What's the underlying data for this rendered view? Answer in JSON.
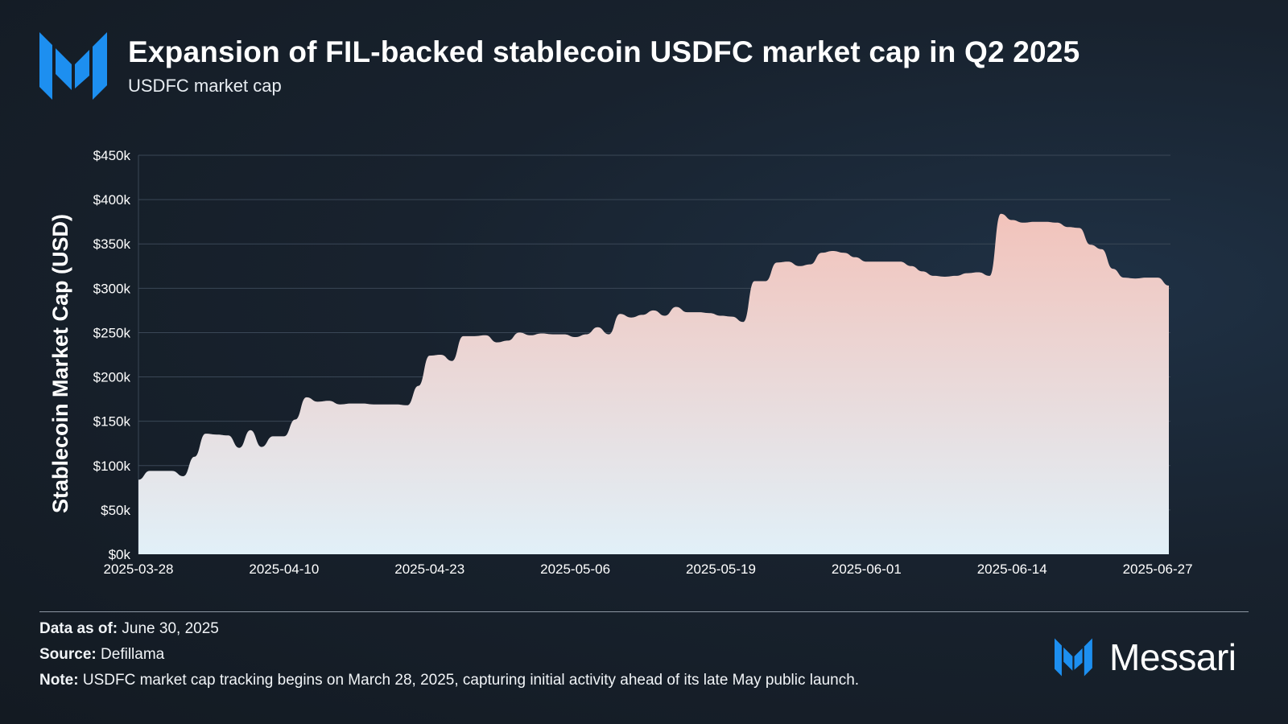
{
  "header": {
    "title": "Expansion of FIL-backed stablecoin USDFC market cap in Q2 2025",
    "subtitle": "USDFC market cap",
    "logo_icon": "messari-logo-icon"
  },
  "footer": {
    "data_as_of_label": "Data as of:",
    "data_as_of_value": "June 30, 2025",
    "source_label": "Source:",
    "source_value": "Defillama",
    "note_label": "Note:",
    "note_value": "USDFC market cap tracking begins on March 28, 2025, capturing initial activity ahead of its late May public launch.",
    "brand_name": "Messari",
    "brand_icon": "messari-logo-icon"
  },
  "colors": {
    "accent_blue": "#1d8ff0",
    "area_top": "#f2c3bb",
    "area_bottom": "#e1f0f8",
    "grid": "#3a4756",
    "background": "#18222e"
  },
  "chart_data": {
    "type": "area",
    "title": "Expansion of FIL-backed stablecoin USDFC market cap in Q2 2025",
    "subtitle": "USDFC market cap",
    "xlabel": "",
    "ylabel": "Stablecoin Market Cap (USD)",
    "ylim": [
      0,
      450000
    ],
    "yticks": [
      0,
      50000,
      100000,
      150000,
      200000,
      250000,
      300000,
      350000,
      400000,
      450000
    ],
    "ytick_labels": [
      "$0k",
      "$50k",
      "$100k",
      "$150k",
      "$200k",
      "$250k",
      "$300k",
      "$350k",
      "$400k",
      "$450k"
    ],
    "grid": true,
    "legend": "none",
    "x_tick_labels": [
      "2025-03-28",
      "2025-04-10",
      "2025-04-23",
      "2025-05-06",
      "2025-05-19",
      "2025-06-01",
      "2025-06-14",
      "2025-06-27"
    ],
    "x_tick_days": [
      0,
      13,
      26,
      39,
      52,
      65,
      78,
      91
    ],
    "x_start": "2025-03-28",
    "series": [
      {
        "name": "USDFC market cap",
        "x_days": [
          0,
          1,
          2,
          3,
          4,
          5,
          6,
          7,
          8,
          9,
          10,
          11,
          12,
          13,
          14,
          15,
          16,
          17,
          18,
          19,
          20,
          21,
          22,
          23,
          24,
          25,
          26,
          27,
          28,
          29,
          30,
          31,
          32,
          33,
          34,
          35,
          36,
          37,
          38,
          39,
          40,
          41,
          42,
          43,
          44,
          45,
          46,
          47,
          48,
          49,
          50,
          51,
          52,
          53,
          54,
          55,
          56,
          57,
          58,
          59,
          60,
          61,
          62,
          63,
          64,
          65,
          66,
          67,
          68,
          69,
          70,
          71,
          72,
          73,
          74,
          75,
          76,
          77,
          78,
          79,
          80,
          81,
          82,
          83,
          84,
          85,
          86,
          87,
          88,
          89,
          90,
          91,
          92
        ],
        "values": [
          84000,
          94000,
          94000,
          94000,
          88000,
          110000,
          136000,
          135000,
          134000,
          120000,
          140000,
          121000,
          133000,
          133000,
          152000,
          177000,
          172000,
          173000,
          169000,
          170000,
          170000,
          169000,
          169000,
          169000,
          168000,
          190000,
          224000,
          225000,
          218000,
          246000,
          246000,
          247000,
          239000,
          241000,
          250000,
          247000,
          249000,
          248000,
          248000,
          245000,
          248000,
          256000,
          248000,
          271000,
          267000,
          270000,
          275000,
          269000,
          279000,
          273000,
          273000,
          272000,
          269000,
          268000,
          262000,
          308000,
          308000,
          329000,
          330000,
          325000,
          327000,
          340000,
          342000,
          340000,
          335000,
          330000,
          330000,
          330000,
          330000,
          325000,
          319000,
          314000,
          313000,
          314000,
          317000,
          318000,
          314000,
          384000,
          377000,
          374000,
          375000,
          375000,
          374000,
          369000,
          368000,
          349000,
          344000,
          322000,
          312000,
          311000,
          312000,
          312000,
          303000
        ]
      }
    ]
  }
}
